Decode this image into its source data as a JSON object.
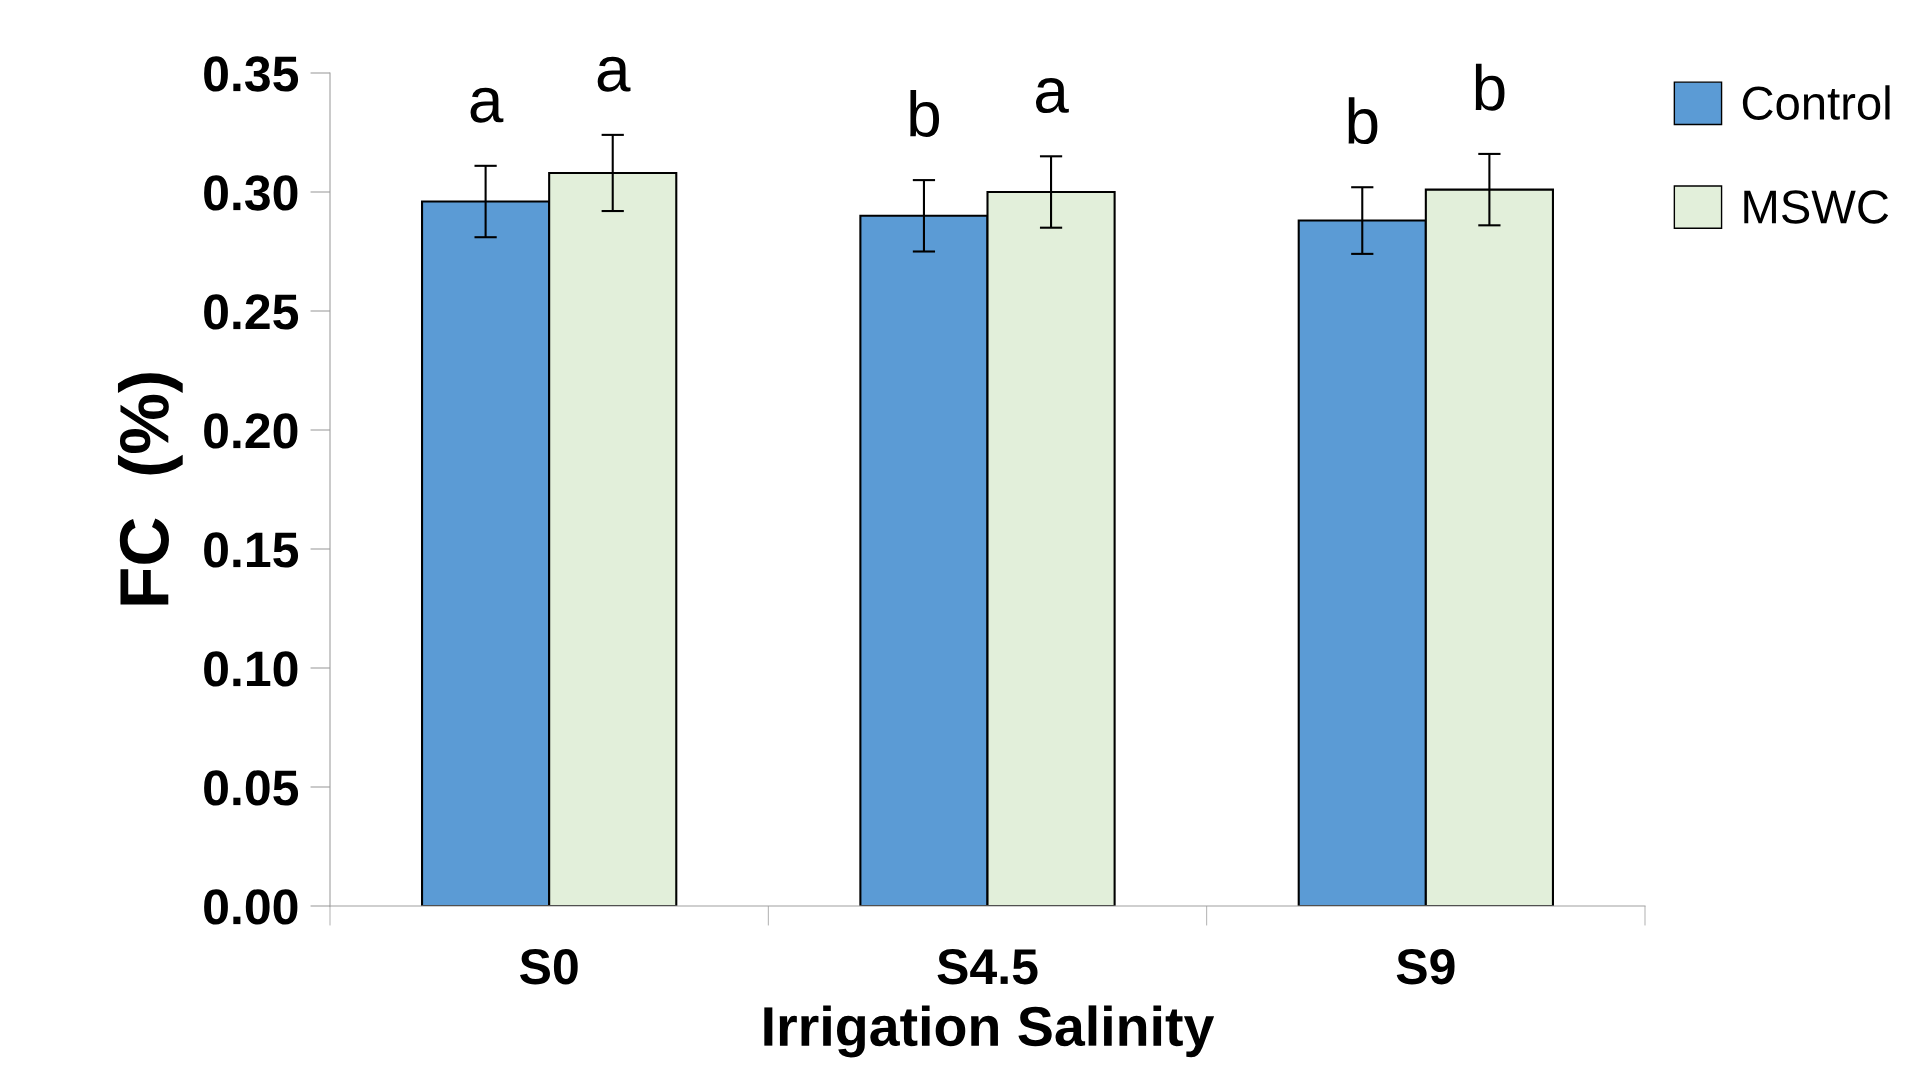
{
  "chart_data": {
    "type": "bar",
    "xlabel": "Irrigation Salinity",
    "ylabel": "FC  (%)",
    "categories": [
      "S0",
      "S4.5",
      "S9"
    ],
    "series": [
      {
        "name": "Control",
        "color": "#5b9bd5",
        "values": [
          0.296,
          0.29,
          0.288
        ],
        "errors": [
          0.015,
          0.015,
          0.014
        ]
      },
      {
        "name": "MSWC",
        "color": "#e2efda",
        "values": [
          0.308,
          0.3,
          0.301
        ],
        "errors": [
          0.016,
          0.015,
          0.015
        ]
      }
    ],
    "ylim": [
      0,
      0.35
    ],
    "yticks": [
      {
        "value": 0,
        "label": "0.00"
      },
      {
        "value": 0.05,
        "label": "0.05"
      },
      {
        "value": 0.1,
        "label": "0.10"
      },
      {
        "value": 0.15,
        "label": "0.15"
      },
      {
        "value": 0.2,
        "label": "0.20"
      },
      {
        "value": 0.25,
        "label": "0.25"
      },
      {
        "value": 0.3,
        "label": "0.30"
      },
      {
        "value": 0.35,
        "label": "0.35"
      }
    ],
    "annotations": [
      "a",
      "a",
      "b",
      "a",
      "b",
      "b"
    ],
    "grid": false,
    "legend": "top right"
  }
}
